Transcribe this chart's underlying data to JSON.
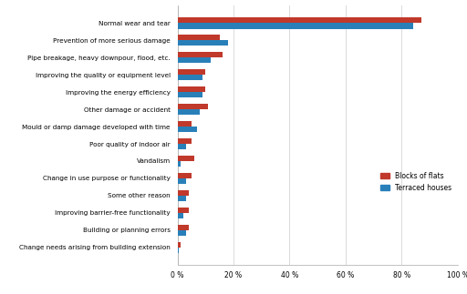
{
  "categories": [
    "Normal wear and tear",
    "Prevention of more serious damage",
    "Pipe breakage, heavy downpour, flood, etc.",
    "Improving the quality or equipment level",
    "Improving the energy efficiency",
    "Other damage or accident",
    "Mould or damp damage developed with time",
    "Poor quality of indoor air",
    "Vandalism",
    "Change in use purpose or functionality",
    "Some other reason",
    "Improving barrier-free functionality",
    "Building or planning errors",
    "Change needs arising from building extension"
  ],
  "blocks_of_flats": [
    87,
    15,
    16,
    10,
    10,
    11,
    5,
    5,
    6,
    5,
    4,
    4,
    4,
    1
  ],
  "terraced_houses": [
    84,
    18,
    12,
    9,
    9,
    8,
    7,
    3,
    1,
    3,
    3,
    2,
    3,
    0.5
  ],
  "color_blocks": "#c0392b",
  "color_terraced": "#2980b9",
  "xlim": [
    0,
    100
  ],
  "xticks": [
    0,
    20,
    40,
    60,
    80,
    100
  ],
  "xtick_labels": [
    "0 %",
    "20 %",
    "40 %",
    "60 %",
    "80 %",
    "100 %"
  ],
  "legend_labels": [
    "Blocks of flats",
    "Terraced houses"
  ],
  "bar_height": 0.32,
  "background_color": "#ffffff",
  "grid_color": "#cccccc",
  "label_fontsize": 5.2,
  "tick_fontsize": 5.5
}
